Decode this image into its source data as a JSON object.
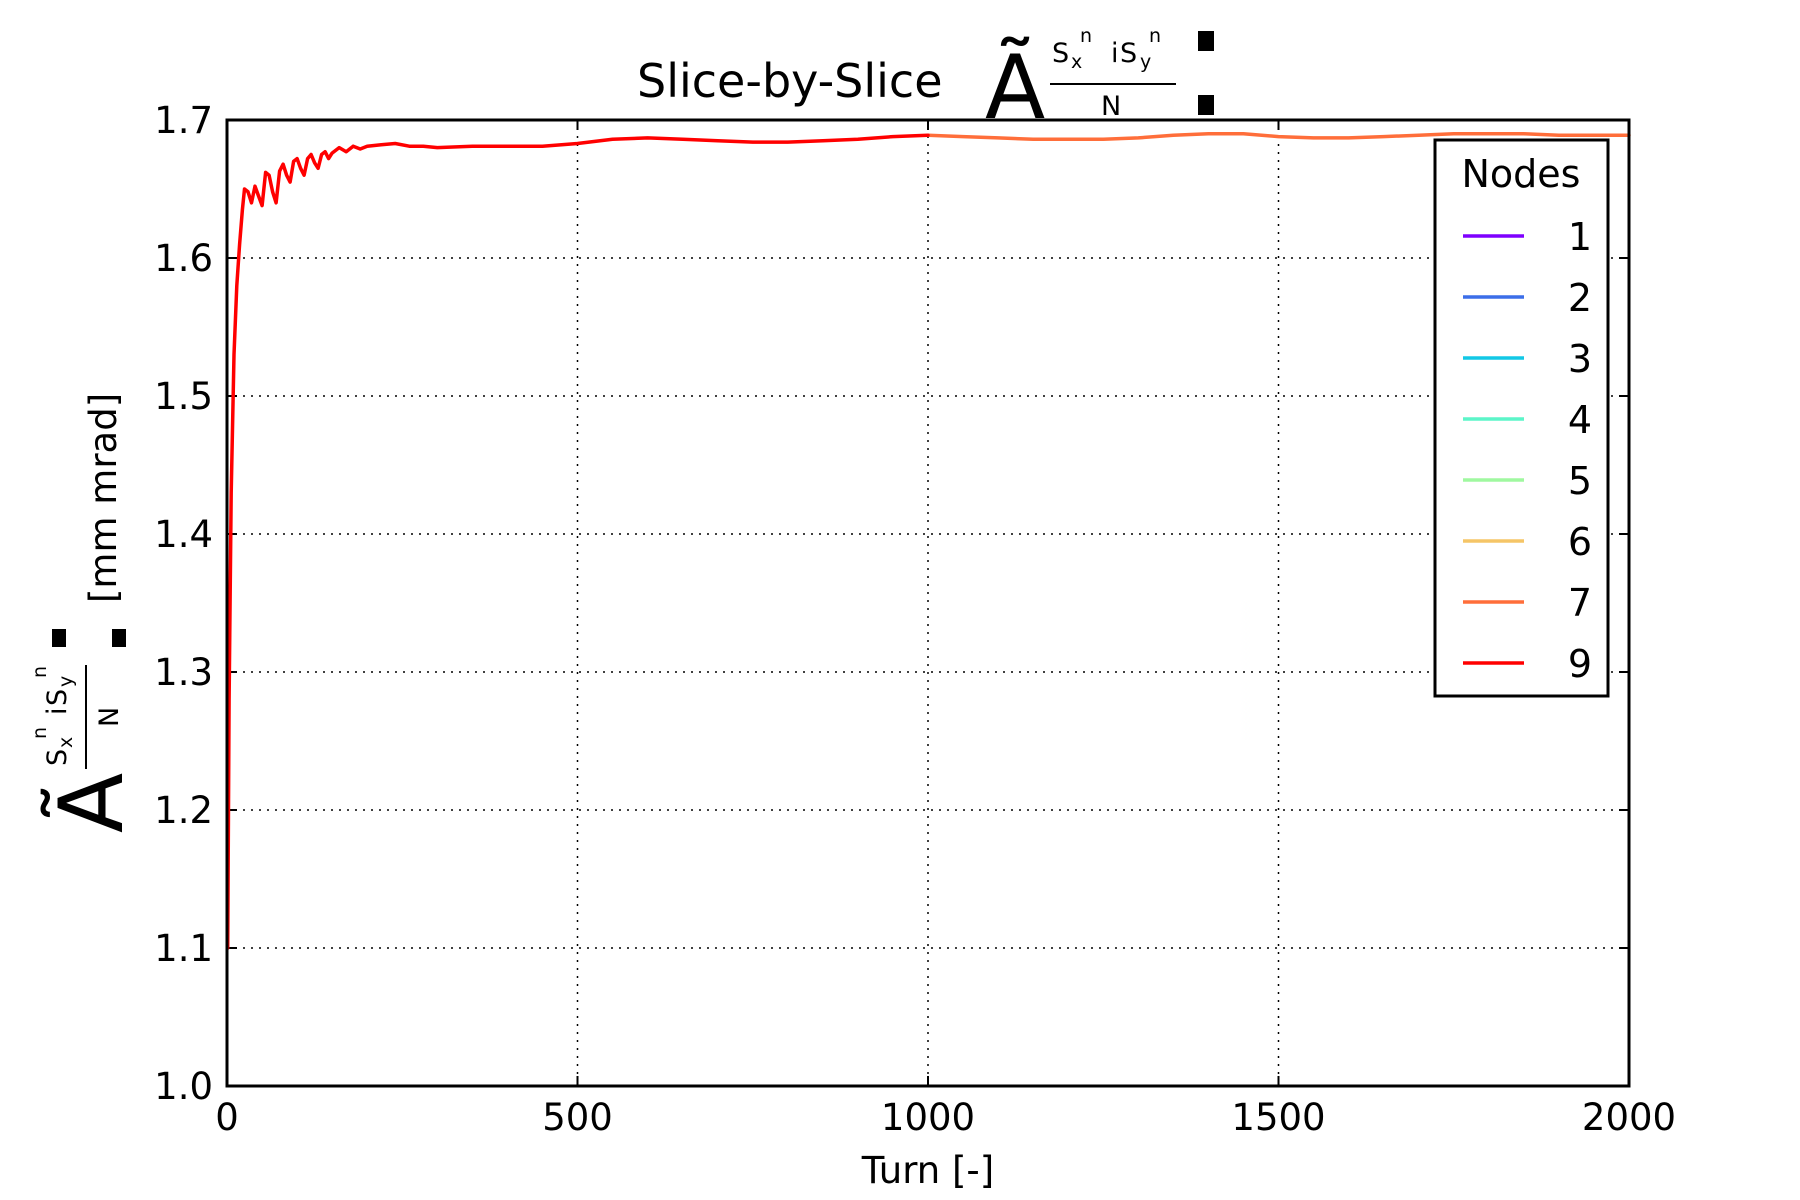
{
  "chart_data": {
    "type": "line",
    "title": "Slice-by-Slice",
    "title_symbol": {
      "main": "Ã",
      "num_a": "S",
      "sub_a": "x",
      "sup_a": "n",
      "mid": "i",
      "num_b": "S",
      "sub_b": "y",
      "sup_b": "n",
      "den": "N"
    },
    "xlabel": "Turn [-]",
    "ylabel_unit": "[mm mrad]",
    "xlim": [
      0,
      2000
    ],
    "ylim": [
      1.0,
      1.7
    ],
    "x_ticks": [
      0,
      500,
      1000,
      1500,
      2000
    ],
    "x_tick_labels": [
      "0",
      "500",
      "1000",
      "1500",
      "2000"
    ],
    "y_ticks": [
      1.0,
      1.1,
      1.2,
      1.3,
      1.4,
      1.5,
      1.6,
      1.7
    ],
    "y_tick_labels": [
      "1.0",
      "1.1",
      "1.2",
      "1.3",
      "1.4",
      "1.5",
      "1.6",
      "1.7"
    ],
    "grid": true,
    "legend": {
      "title": "Nodes",
      "position": "top-right",
      "entries": [
        {
          "label": "1",
          "color": "#7f00ff"
        },
        {
          "label": "2",
          "color": "#3c6ee9"
        },
        {
          "label": "3",
          "color": "#12c8e6"
        },
        {
          "label": "4",
          "color": "#5cf5c9"
        },
        {
          "label": "5",
          "color": "#a0f8a0"
        },
        {
          "label": "6",
          "color": "#f5c567"
        },
        {
          "label": "7",
          "color": "#ff6e3a"
        },
        {
          "label": "9",
          "color": "#ff0000"
        }
      ]
    },
    "series": [
      {
        "name": "7",
        "color": "#ff6e3a",
        "x": [
          1000,
          1050,
          1100,
          1150,
          1200,
          1250,
          1300,
          1350,
          1400,
          1450,
          1500,
          1550,
          1600,
          1650,
          1700,
          1750,
          1800,
          1850,
          1900,
          1950,
          2000
        ],
        "y": [
          1.689,
          1.688,
          1.687,
          1.686,
          1.686,
          1.686,
          1.687,
          1.689,
          1.69,
          1.69,
          1.688,
          1.687,
          1.687,
          1.688,
          1.689,
          1.69,
          1.69,
          1.69,
          1.689,
          1.689,
          1.689
        ]
      },
      {
        "name": "9",
        "color": "#ff0000",
        "x": [
          1,
          3,
          6,
          10,
          14,
          18,
          22,
          25,
          30,
          35,
          40,
          45,
          50,
          55,
          60,
          65,
          70,
          75,
          80,
          85,
          90,
          95,
          100,
          105,
          110,
          115,
          120,
          125,
          130,
          135,
          140,
          145,
          150,
          160,
          170,
          180,
          190,
          200,
          220,
          240,
          260,
          280,
          300,
          350,
          400,
          450,
          500,
          550,
          600,
          650,
          700,
          750,
          800,
          850,
          900,
          950,
          1000
        ],
        "y": [
          1.1,
          1.28,
          1.43,
          1.53,
          1.58,
          1.61,
          1.635,
          1.65,
          1.648,
          1.64,
          1.652,
          1.645,
          1.638,
          1.662,
          1.66,
          1.648,
          1.64,
          1.663,
          1.668,
          1.66,
          1.655,
          1.67,
          1.672,
          1.665,
          1.66,
          1.672,
          1.675,
          1.669,
          1.665,
          1.675,
          1.677,
          1.672,
          1.676,
          1.68,
          1.677,
          1.681,
          1.679,
          1.681,
          1.682,
          1.683,
          1.681,
          1.681,
          1.68,
          1.681,
          1.681,
          1.681,
          1.683,
          1.686,
          1.687,
          1.686,
          1.685,
          1.684,
          1.684,
          1.685,
          1.686,
          1.688,
          1.689
        ]
      }
    ]
  }
}
